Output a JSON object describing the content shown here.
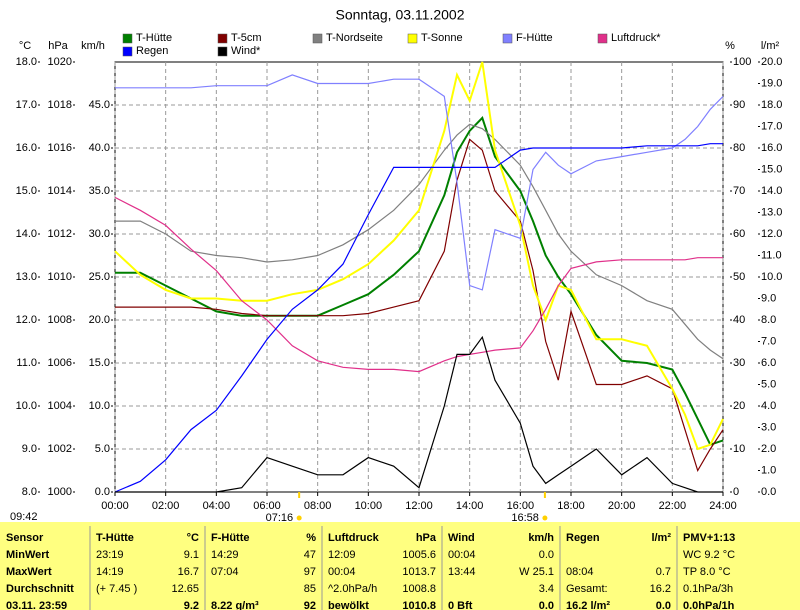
{
  "chart_data": {
    "type": "line",
    "title": "Sonntag, 03.11.2002",
    "x": [
      0,
      1,
      2,
      3,
      4,
      5,
      6,
      7,
      8,
      9,
      10,
      11,
      12,
      13,
      13.5,
      14,
      14.5,
      15,
      16,
      16.5,
      17,
      17.5,
      18,
      19,
      20,
      21,
      22,
      22.5,
      23,
      23.5,
      24
    ],
    "xlim": [
      0,
      24
    ],
    "xticks": [
      {
        "value": 0,
        "label": "00:00"
      },
      {
        "value": 2,
        "label": "02:00"
      },
      {
        "value": 4,
        "label": "04:00"
      },
      {
        "value": 6,
        "label": "06:00"
      },
      {
        "value": 8,
        "label": "08:00"
      },
      {
        "value": 10,
        "label": "10:00"
      },
      {
        "value": 12,
        "label": "12:00"
      },
      {
        "value": 14,
        "label": "14:00"
      },
      {
        "value": 16,
        "label": "16:00"
      },
      {
        "value": 18,
        "label": "18:00"
      },
      {
        "value": 20,
        "label": "20:00"
      },
      {
        "value": 22,
        "label": "22:00"
      },
      {
        "value": 24,
        "label": "24:00"
      }
    ],
    "ylabel": "°C",
    "ylim": [
      8,
      18
    ],
    "yticks": [
      {
        "value": 8,
        "label": "8.0"
      },
      {
        "value": 9,
        "label": "9.0"
      },
      {
        "value": 10,
        "label": "10.0"
      },
      {
        "value": 11,
        "label": "11.0"
      },
      {
        "value": 12,
        "label": "12.0"
      },
      {
        "value": 13,
        "label": "13.0"
      },
      {
        "value": 14,
        "label": "14.0"
      },
      {
        "value": 15,
        "label": "15.0"
      },
      {
        "value": 16,
        "label": "16.0"
      },
      {
        "value": 17,
        "label": "17.0"
      },
      {
        "value": 18,
        "label": "18.0"
      }
    ],
    "y2label": "hPa",
    "y2lim": [
      1000,
      1020
    ],
    "y2ticks": [
      1000,
      1002,
      1004,
      1006,
      1008,
      1010,
      1012,
      1014,
      1016,
      1018,
      1020
    ],
    "y3label": "km/h",
    "y3lim": [
      0,
      50
    ],
    "y3ticks": [
      {
        "value": 0,
        "label": "0.0"
      },
      {
        "value": 5,
        "label": "5.0"
      },
      {
        "value": 10,
        "label": "10.0"
      },
      {
        "value": 15,
        "label": "15.0"
      },
      {
        "value": 20,
        "label": "20.0"
      },
      {
        "value": 25,
        "label": "25.0"
      },
      {
        "value": 30,
        "label": "30.0"
      },
      {
        "value": 35,
        "label": "35.0"
      },
      {
        "value": 40,
        "label": "40.0"
      },
      {
        "value": 45,
        "label": "45.0"
      }
    ],
    "y4label": "%",
    "y4lim": [
      0,
      100
    ],
    "y4ticks": [
      0,
      10,
      20,
      30,
      40,
      50,
      60,
      70,
      80,
      90,
      100
    ],
    "y5label": "l/m²",
    "y5lim": [
      0,
      20
    ],
    "y5ticks": [
      {
        "value": 0,
        "label": "0.0"
      },
      {
        "value": 1,
        "label": "1.0"
      },
      {
        "value": 2,
        "label": "2.0"
      },
      {
        "value": 3,
        "label": "3.0"
      },
      {
        "value": 4,
        "label": "4.0"
      },
      {
        "value": 5,
        "label": "5.0"
      },
      {
        "value": 6,
        "label": "6.0"
      },
      {
        "value": 7,
        "label": "7.0"
      },
      {
        "value": 8,
        "label": "8.0"
      },
      {
        "value": 9,
        "label": "9.0"
      },
      {
        "value": 10,
        "label": "10.0"
      },
      {
        "value": 11,
        "label": "11.0"
      },
      {
        "value": 12,
        "label": "12.0"
      },
      {
        "value": 13,
        "label": "13.0"
      },
      {
        "value": 14,
        "label": "14.0"
      },
      {
        "value": 15,
        "label": "15.0"
      },
      {
        "value": 16,
        "label": "16.0"
      },
      {
        "value": 17,
        "label": "17.0"
      },
      {
        "value": 18,
        "label": "18.0"
      },
      {
        "value": 19,
        "label": "19.0"
      },
      {
        "value": 20,
        "label": "20.0"
      }
    ],
    "grid": true,
    "series": [
      {
        "name": "T-Hütte",
        "color": "#008000",
        "axis": "y",
        "values": [
          13.1,
          13.1,
          12.8,
          12.5,
          12.2,
          12.1,
          12.1,
          12.1,
          12.1,
          12.35,
          12.6,
          13.05,
          13.6,
          14.9,
          15.9,
          16.4,
          16.7,
          15.8,
          15.0,
          14.3,
          13.5,
          13.0,
          12.6,
          11.65,
          11.05,
          11.0,
          10.85,
          10.3,
          9.7,
          9.1,
          9.2
        ]
      },
      {
        "name": "T-5cm",
        "color": "#800000",
        "axis": "y",
        "values": [
          12.3,
          12.3,
          12.3,
          12.3,
          12.25,
          12.15,
          12.1,
          12.1,
          12.1,
          12.1,
          12.15,
          12.3,
          12.45,
          13.6,
          15.25,
          16.2,
          15.95,
          15.0,
          14.3,
          13.15,
          11.5,
          10.6,
          12.2,
          10.5,
          10.5,
          10.7,
          10.4,
          9.45,
          8.5,
          9.0,
          9.45
        ]
      },
      {
        "name": "T-Nordseite",
        "color": "#808080",
        "axis": "y",
        "values": [
          14.3,
          14.3,
          14.0,
          13.6,
          13.5,
          13.45,
          13.35,
          13.4,
          13.5,
          13.75,
          14.1,
          14.55,
          15.15,
          15.95,
          16.3,
          16.55,
          16.45,
          16.2,
          15.6,
          15.1,
          14.55,
          14.0,
          13.6,
          13.05,
          12.8,
          12.45,
          12.25,
          11.9,
          11.55,
          11.3,
          11.1
        ]
      },
      {
        "name": "T-Sonne",
        "color": "#ffff00",
        "axis": "y",
        "values": [
          13.6,
          13.05,
          12.7,
          12.5,
          12.5,
          12.45,
          12.45,
          12.6,
          12.7,
          12.95,
          13.3,
          13.85,
          14.55,
          16.4,
          17.7,
          17.1,
          18.0,
          15.95,
          14.2,
          12.8,
          12.0,
          12.8,
          12.7,
          11.55,
          11.55,
          11.4,
          10.4,
          9.8,
          9.0,
          9.1,
          9.7
        ]
      },
      {
        "name": "F-Hütte",
        "color": "#8080ff",
        "axis": "y4",
        "values": [
          94,
          94,
          94,
          94,
          94.5,
          94.5,
          94.5,
          97,
          95,
          95,
          95,
          96,
          96,
          92,
          72,
          48,
          47,
          61,
          59,
          75,
          79,
          76,
          74,
          77,
          78,
          79,
          80,
          82,
          85,
          89,
          92
        ]
      },
      {
        "name": "Luftdruck*",
        "color": "#e0308a",
        "axis": "y2",
        "values": [
          1013.7,
          1013.1,
          1012.4,
          1011.3,
          1010.3,
          1008.9,
          1008.0,
          1006.8,
          1006.1,
          1005.8,
          1005.7,
          1005.7,
          1005.6,
          1006.1,
          1006.3,
          1006.4,
          1006.5,
          1006.6,
          1006.7,
          1007.5,
          1008.5,
          1009.6,
          1010.4,
          1010.7,
          1010.8,
          1010.8,
          1010.8,
          1010.8,
          1010.9,
          1010.9,
          1010.9
        ]
      },
      {
        "name": "Regen",
        "color": "#0000ff",
        "axis": "y5",
        "values": [
          0,
          0.5,
          1.5,
          2.9,
          3.8,
          5.4,
          7.1,
          8.5,
          9.4,
          10.6,
          12.9,
          15.1,
          15.1,
          15.1,
          15.1,
          15.1,
          15.1,
          15.1,
          15.9,
          16.0,
          16.0,
          16.0,
          16.0,
          16.0,
          16.0,
          16.1,
          16.1,
          16.1,
          16.1,
          16.2,
          16.2
        ]
      },
      {
        "name": "Wind*",
        "color": "#000000",
        "axis": "y3",
        "values": [
          0,
          0,
          0,
          0,
          0,
          0.5,
          4,
          3,
          2,
          2,
          4,
          3,
          0.5,
          10,
          16,
          16,
          18,
          13,
          8,
          3,
          1,
          2,
          3,
          5,
          2,
          4,
          1,
          0.5,
          0,
          0,
          0
        ]
      }
    ],
    "annotations": [
      {
        "text": "07:16",
        "x": 7.27
      },
      {
        "text": "16:58",
        "x": 16.97
      }
    ],
    "timestamp": "09:42"
  },
  "table": {
    "header": [
      {
        "l": "Sensor"
      },
      {
        "l": "T-Hütte",
        "r": "°C"
      },
      {
        "l": "F-Hütte",
        "r": "%"
      },
      {
        "l": "Luftdruck",
        "r": "hPa"
      },
      {
        "l": "Wind",
        "r": "km/h"
      },
      {
        "l": "Regen",
        "r": "l/m²"
      },
      {
        "l": "PMV+1:13"
      }
    ],
    "rows": [
      [
        {
          "l": "MinWert"
        },
        {
          "l": "23:19",
          "r": "9.1"
        },
        {
          "l": "14:29",
          "r": "47"
        },
        {
          "l": "12:09",
          "r": "1005.6"
        },
        {
          "l": "00:04",
          "r": "0.0"
        },
        {},
        {
          "l": "WC 9.2 °C"
        }
      ],
      [
        {
          "l": "MaxWert"
        },
        {
          "l": "14:19",
          "r": "16.7"
        },
        {
          "l": "07:04",
          "r": "97"
        },
        {
          "l": "00:04",
          "r": "1013.7"
        },
        {
          "l": "13:44",
          "r": "W 25.1"
        },
        {
          "l": "08:04",
          "r": "0.7"
        },
        {
          "l": "TP 8.0 °C"
        }
      ],
      [
        {
          "l": "Durchschnitt"
        },
        {
          "l": "(+ 7.45 )",
          "r": "12.65"
        },
        {
          "r": "85"
        },
        {
          "l": "^2.0hPa/h",
          "r": "1008.8"
        },
        {
          "r": "3.4"
        },
        {
          "l": "Gesamt:",
          "r": "16.2"
        },
        {
          "l": "0.1hPa/3h"
        }
      ],
      [
        {
          "l": "03.11. 23:59"
        },
        {
          "r": "9.2"
        },
        {
          "l": "8.22 g/m³",
          "r": "92"
        },
        {
          "l": "bewölkt",
          "r": "1010.8"
        },
        {
          "l": "0 Bft",
          "r": "0.0"
        },
        {
          "l": "16.2 l/m²",
          "r": "0.0"
        },
        {
          "l": "0.0hPa/1h"
        }
      ]
    ]
  }
}
